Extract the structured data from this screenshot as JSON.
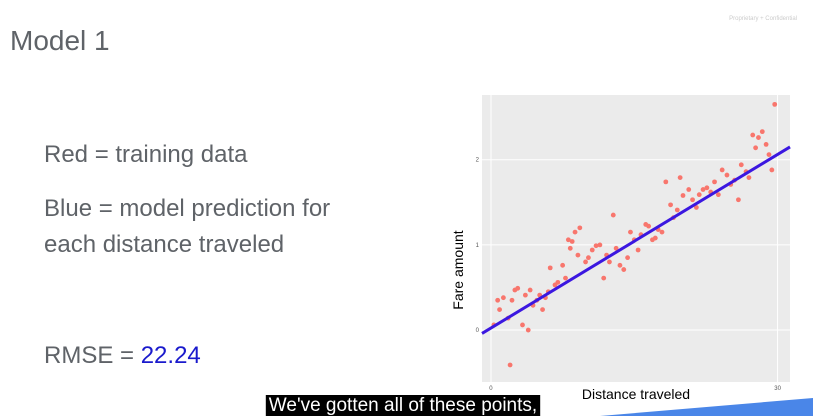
{
  "header": {
    "title": "Model 1",
    "confidential": "Proprietary + Confidential"
  },
  "bullets": [
    "Red = training data",
    "Blue = model prediction for",
    "each distance traveled"
  ],
  "rmse": {
    "label": "RMSE =",
    "value": 22.24
  },
  "caption": "We've gotten all of these points,",
  "chart_data": {
    "type": "scatter",
    "xlabel": "Distance traveled",
    "ylabel": "Fare amount",
    "xlim": [
      -0.94,
      31.3
    ],
    "ylim": [
      -0.61,
      2.76
    ],
    "xticks": [
      0,
      30
    ],
    "yticks": [
      0,
      1,
      2
    ],
    "grid": true,
    "points": {
      "color": "#f8766d",
      "x": [
        0.3,
        0.7,
        0.9,
        1.3,
        1.8,
        2.0,
        2.2,
        2.5,
        2.8,
        3.3,
        3.6,
        3.9,
        4.1,
        4.4,
        4.8,
        5.1,
        5.4,
        5.7,
        6.0,
        6.2,
        6.7,
        7.0,
        7.5,
        7.8,
        8.1,
        8.3,
        8.5,
        8.8,
        9.1,
        9.3,
        9.9,
        10.2,
        10.6,
        11.0,
        11.4,
        11.8,
        12.1,
        12.4,
        12.8,
        13.1,
        13.5,
        13.9,
        14.3,
        14.6,
        15.0,
        15.4,
        15.7,
        16.2,
        16.5,
        16.9,
        17.2,
        17.5,
        17.9,
        18.3,
        18.8,
        19.1,
        19.5,
        19.8,
        20.1,
        20.7,
        21.1,
        21.5,
        21.8,
        22.2,
        22.6,
        23.0,
        23.4,
        23.8,
        24.2,
        24.7,
        25.1,
        25.5,
        25.9,
        26.2,
        26.7,
        27.0,
        27.4,
        27.7,
        28.0,
        28.4,
        28.8,
        29.1,
        29.4,
        29.7
      ],
      "values": [
        0.06,
        0.35,
        0.24,
        0.38,
        0.14,
        -0.41,
        0.35,
        0.47,
        0.49,
        0.06,
        0.41,
        0,
        0.47,
        0.29,
        0.35,
        0.41,
        0.24,
        0.38,
        0.45,
        0.73,
        0.53,
        0.56,
        0.76,
        0.61,
        1.06,
        0.96,
        1.04,
        1.15,
        0.88,
        1.2,
        0.8,
        0.85,
        0.94,
        0.99,
        1.0,
        0.61,
        0.88,
        0.8,
        1.35,
        0.96,
        0.76,
        0.71,
        0.85,
        1.15,
        1.06,
        0.94,
        1.12,
        1.24,
        1.22,
        1.06,
        1.08,
        1.18,
        1.15,
        1.74,
        1.47,
        1.32,
        1.41,
        1.79,
        1.58,
        1.65,
        1.53,
        1.44,
        1.59,
        1.65,
        1.67,
        1.62,
        1.74,
        1.59,
        1.88,
        1.82,
        1.71,
        1.76,
        1.53,
        1.94,
        1.86,
        1.79,
        2.29,
        2.14,
        2.26,
        2.33,
        2.18,
        2.06,
        1.88,
        2.65
      ]
    },
    "fit_line": {
      "color": "#3b17e0",
      "x": [
        -0.94,
        31.3
      ],
      "values": [
        -0.04,
        2.15
      ]
    }
  }
}
